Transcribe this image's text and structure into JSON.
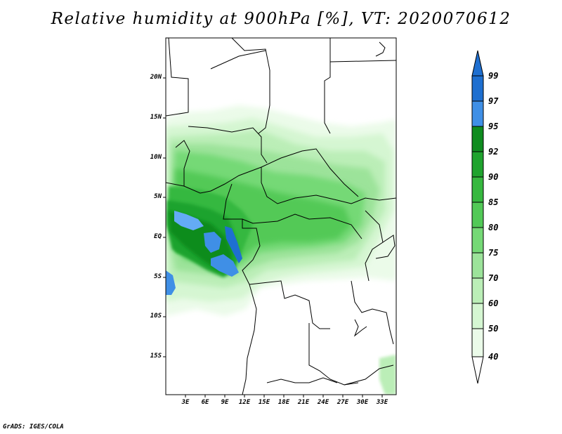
{
  "title": "Relative humidity at 900hPa [%], VT: 2020070612",
  "credit": "GrADS: IGES/COLA",
  "map": {
    "lat_labels": [
      "20N",
      "15N",
      "10N",
      "5N",
      "EQ",
      "5S",
      "10S",
      "15S"
    ],
    "lon_labels": [
      "3E",
      "6E",
      "9E",
      "12E",
      "15E",
      "18E",
      "21E",
      "24E",
      "27E",
      "30E",
      "33E"
    ]
  },
  "colorbar": {
    "levels": [
      "99",
      "97",
      "95",
      "92",
      "90",
      "85",
      "80",
      "75",
      "70",
      "60",
      "50",
      "40"
    ],
    "colors": [
      "#1e6fd0",
      "#3f8fe6",
      "#64abf5",
      "#0f8c1f",
      "#1fa32e",
      "#36b83f",
      "#52c957",
      "#75d976",
      "#9ce39a",
      "#bbeeb7",
      "#d5f6d2",
      "#ebfbe9",
      "#ffffff"
    ]
  }
}
